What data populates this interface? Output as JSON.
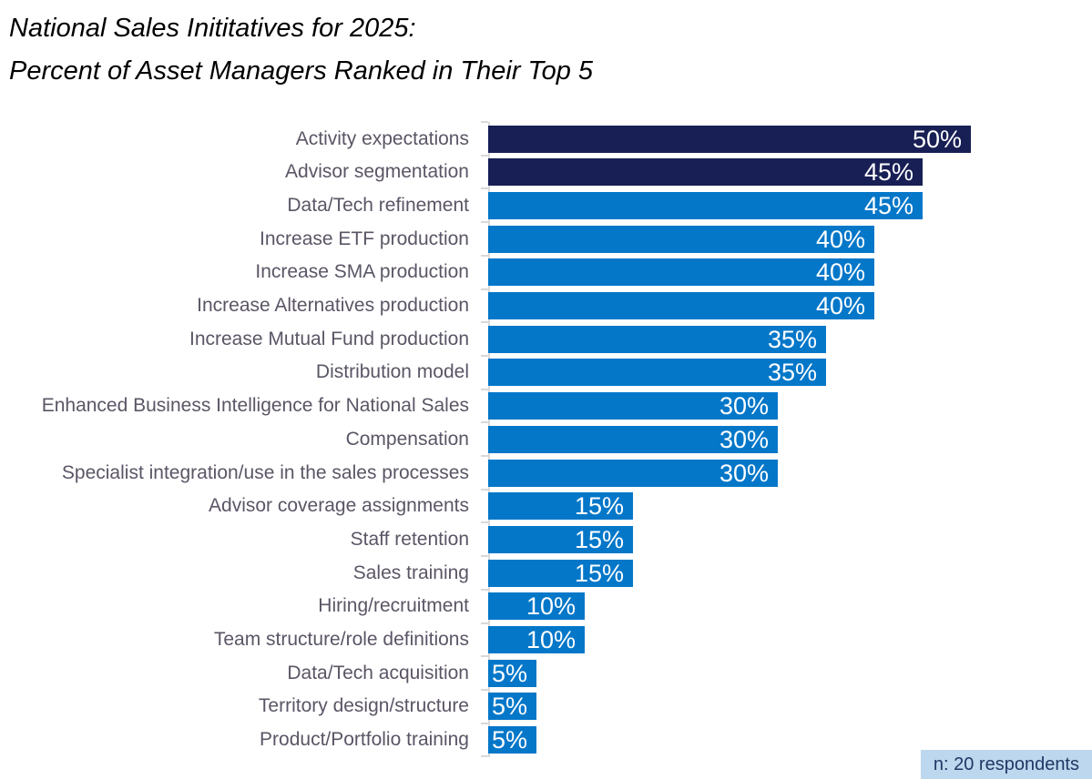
{
  "title": {
    "line1": "National Sales Inititatives for 2025:",
    "line2": "Percent of Asset Managers Ranked in Their Top 5",
    "color": "#000000"
  },
  "chart_data": {
    "type": "bar",
    "orientation": "horizontal",
    "title": "National Sales Inititatives for 2025: Percent of Asset Managers Ranked in Their Top 5",
    "xlabel": "",
    "ylabel": "",
    "value_axis_labels_visible": false,
    "grid": false,
    "xlim_percent": [
      0,
      62
    ],
    "categories": [
      "Activity expectations",
      "Advisor segmentation",
      "Data/Tech refinement",
      "Increase ETF production",
      "Increase SMA production",
      "Increase Alternatives production",
      "Increase Mutual Fund production",
      "Distribution model",
      "Enhanced Business Intelligence for National Sales",
      "Compensation",
      "Specialist integration/use in the sales processes",
      "Advisor coverage assignments",
      "Staff retention",
      "Sales training",
      "Hiring/recruitment",
      "Team structure/role definitions",
      "Data/Tech acquisition",
      "Territory design/structure",
      "Product/Portfolio training"
    ],
    "values": [
      50,
      45,
      45,
      40,
      40,
      40,
      35,
      35,
      30,
      30,
      30,
      15,
      15,
      15,
      10,
      10,
      5,
      5,
      5
    ],
    "data_labels": [
      "50%",
      "45%",
      "45%",
      "40%",
      "40%",
      "40%",
      "35%",
      "35%",
      "30%",
      "30%",
      "30%",
      "15%",
      "15%",
      "15%",
      "10%",
      "10%",
      "5%",
      "5%",
      "5%"
    ],
    "highlight_indices": [
      0,
      1
    ],
    "bar_color_default": "#0477C9",
    "bar_color_highlight": "#181F55",
    "data_label_color": "#ffffff",
    "category_label_color": "#5B5565",
    "axis_color": "#D9D9D9"
  },
  "footnote": {
    "text": "n: 20 respondents",
    "bg_color": "#BDD7EE",
    "text_color": "#1F3864"
  }
}
